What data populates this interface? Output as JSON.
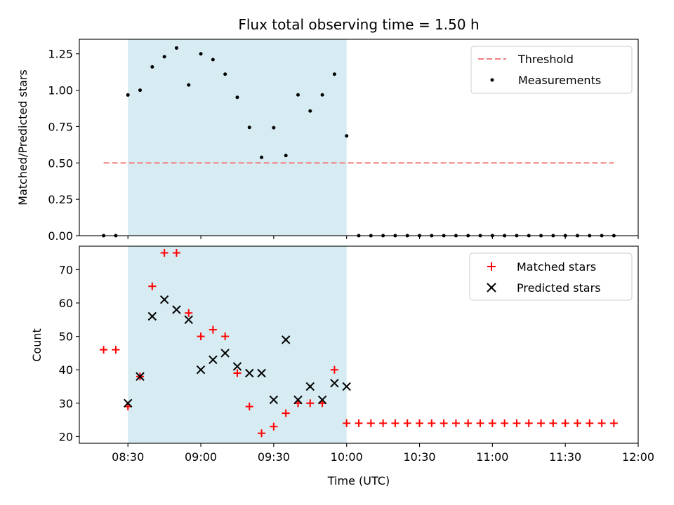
{
  "chart_data": [
    {
      "type": "scatter",
      "title": "Flux total observing time = 1.50 h",
      "xlabel": "",
      "ylabel": "Matched/Predicted stars",
      "xlim": [
        "08:10",
        "12:00"
      ],
      "ylim": [
        0.0,
        1.35
      ],
      "yticks": [
        "0.00",
        "0.25",
        "0.50",
        "0.75",
        "1.00",
        "1.25"
      ],
      "shaded_region": {
        "from": "08:30",
        "to": "10:00",
        "color": "#add8e6"
      },
      "legend_position": "upper right",
      "threshold": {
        "name": "Threshold",
        "value": 0.5,
        "x_from": "08:20",
        "x_to": "11:50",
        "color": "#f08080"
      },
      "series": [
        {
          "name": "Measurements",
          "color": "#000000",
          "points": [
            [
              "08:20",
              0.0
            ],
            [
              "08:25",
              0.0
            ],
            [
              "08:30",
              0.967
            ],
            [
              "08:35",
              1.0
            ],
            [
              "08:40",
              1.16
            ],
            [
              "08:45",
              1.23
            ],
            [
              "08:50",
              1.29
            ],
            [
              "08:55",
              1.036
            ],
            [
              "09:00",
              1.25
            ],
            [
              "09:05",
              1.21
            ],
            [
              "09:10",
              1.11
            ],
            [
              "09:15",
              0.951
            ],
            [
              "09:20",
              0.744
            ],
            [
              "09:25",
              0.538
            ],
            [
              "09:30",
              0.742
            ],
            [
              "09:35",
              0.551
            ],
            [
              "09:40",
              0.968
            ],
            [
              "09:45",
              0.857
            ],
            [
              "09:50",
              0.968
            ],
            [
              "09:55",
              1.11
            ],
            [
              "10:00",
              0.686
            ],
            [
              "10:05",
              0.0
            ],
            [
              "10:10",
              0.0
            ],
            [
              "10:15",
              0.0
            ],
            [
              "10:20",
              0.0
            ],
            [
              "10:25",
              0.0
            ],
            [
              "10:30",
              0.0
            ],
            [
              "10:35",
              0.0
            ],
            [
              "10:40",
              0.0
            ],
            [
              "10:45",
              0.0
            ],
            [
              "10:50",
              0.0
            ],
            [
              "10:55",
              0.0
            ],
            [
              "11:00",
              0.0
            ],
            [
              "11:05",
              0.0
            ],
            [
              "11:10",
              0.0
            ],
            [
              "11:15",
              0.0
            ],
            [
              "11:20",
              0.0
            ],
            [
              "11:25",
              0.0
            ],
            [
              "11:30",
              0.0
            ],
            [
              "11:35",
              0.0
            ],
            [
              "11:40",
              0.0
            ],
            [
              "11:45",
              0.0
            ],
            [
              "11:50",
              0.0
            ]
          ]
        }
      ]
    },
    {
      "type": "scatter",
      "title": "",
      "xlabel": "Time (UTC)",
      "ylabel": "Count",
      "xlim": [
        "08:10",
        "12:00"
      ],
      "ylim": [
        18,
        77
      ],
      "xticks": [
        "08:30",
        "09:00",
        "09:30",
        "10:00",
        "10:30",
        "11:00",
        "11:30",
        "12:00"
      ],
      "yticks": [
        "20",
        "30",
        "40",
        "50",
        "60",
        "70"
      ],
      "shaded_region": {
        "from": "08:30",
        "to": "10:00",
        "color": "#add8e6"
      },
      "legend_position": "upper right",
      "series": [
        {
          "name": "Matched stars",
          "marker": "plus",
          "color": "#ff0000",
          "points": [
            [
              "08:20",
              46
            ],
            [
              "08:25",
              46
            ],
            [
              "08:30",
              29
            ],
            [
              "08:35",
              38
            ],
            [
              "08:40",
              65
            ],
            [
              "08:45",
              75
            ],
            [
              "08:50",
              75
            ],
            [
              "08:55",
              57
            ],
            [
              "09:00",
              50
            ],
            [
              "09:05",
              52
            ],
            [
              "09:10",
              50
            ],
            [
              "09:15",
              39
            ],
            [
              "09:20",
              29
            ],
            [
              "09:25",
              21
            ],
            [
              "09:30",
              23
            ],
            [
              "09:35",
              27
            ],
            [
              "09:40",
              30
            ],
            [
              "09:45",
              30
            ],
            [
              "09:50",
              30
            ],
            [
              "09:55",
              40
            ],
            [
              "10:00",
              24
            ],
            [
              "10:05",
              24
            ],
            [
              "10:10",
              24
            ],
            [
              "10:15",
              24
            ],
            [
              "10:20",
              24
            ],
            [
              "10:25",
              24
            ],
            [
              "10:30",
              24
            ],
            [
              "10:35",
              24
            ],
            [
              "10:40",
              24
            ],
            [
              "10:45",
              24
            ],
            [
              "10:50",
              24
            ],
            [
              "10:55",
              24
            ],
            [
              "11:00",
              24
            ],
            [
              "11:05",
              24
            ],
            [
              "11:10",
              24
            ],
            [
              "11:15",
              24
            ],
            [
              "11:20",
              24
            ],
            [
              "11:25",
              24
            ],
            [
              "11:30",
              24
            ],
            [
              "11:35",
              24
            ],
            [
              "11:40",
              24
            ],
            [
              "11:45",
              24
            ],
            [
              "11:50",
              24
            ]
          ]
        },
        {
          "name": "Predicted stars",
          "marker": "x",
          "color": "#000000",
          "points": [
            [
              "08:30",
              30
            ],
            [
              "08:35",
              38
            ],
            [
              "08:40",
              56
            ],
            [
              "08:45",
              61
            ],
            [
              "08:50",
              58
            ],
            [
              "08:55",
              55
            ],
            [
              "09:00",
              40
            ],
            [
              "09:05",
              43
            ],
            [
              "09:10",
              45
            ],
            [
              "09:15",
              41
            ],
            [
              "09:20",
              39
            ],
            [
              "09:25",
              39
            ],
            [
              "09:30",
              31
            ],
            [
              "09:35",
              49
            ],
            [
              "09:40",
              31
            ],
            [
              "09:45",
              35
            ],
            [
              "09:50",
              31
            ],
            [
              "09:55",
              36
            ],
            [
              "10:00",
              35
            ]
          ]
        }
      ]
    }
  ]
}
